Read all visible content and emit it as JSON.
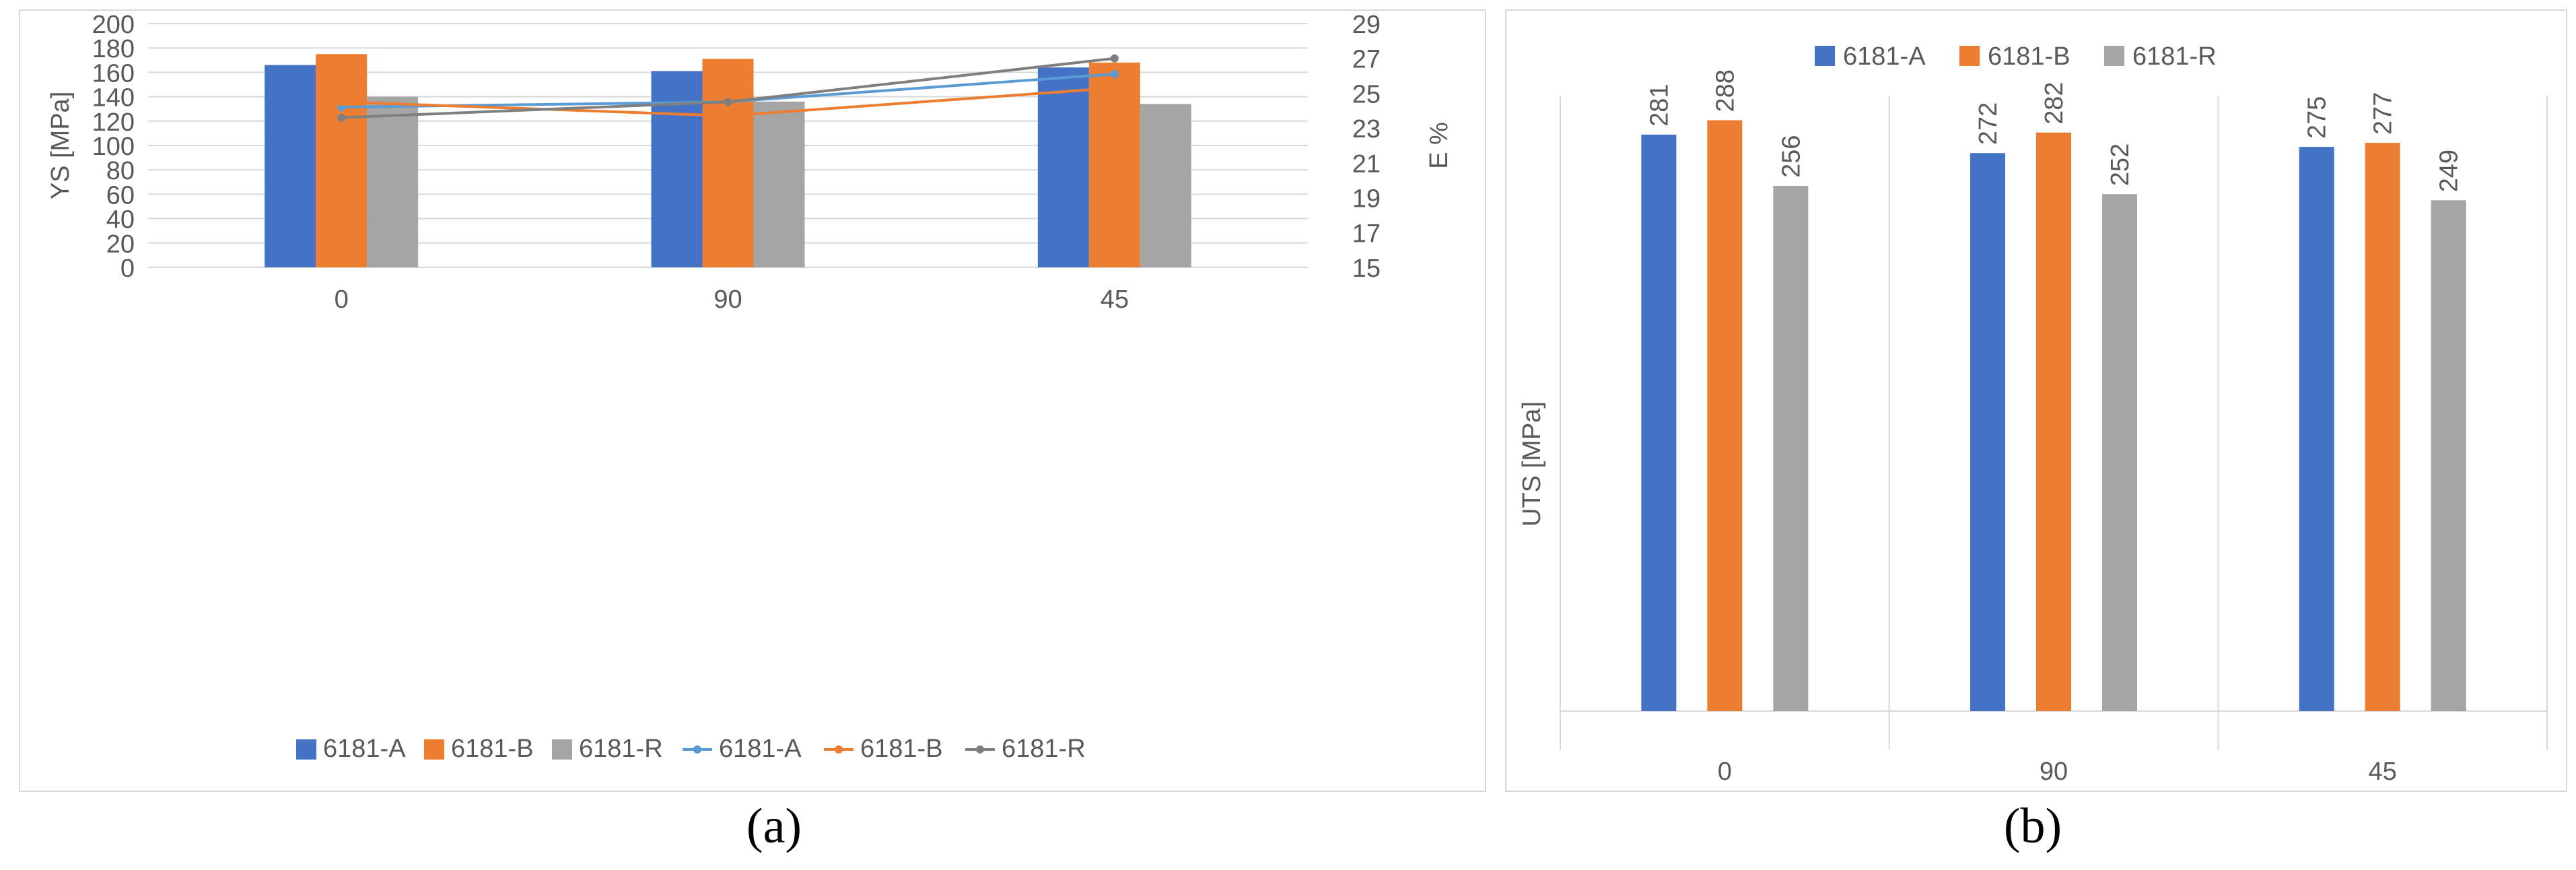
{
  "colors": {
    "series_a": "#4472C4",
    "series_b": "#ED7D31",
    "series_r": "#A5A5A5",
    "line_a": "#5B9BD5",
    "line_b": "#ED7D31",
    "line_r": "#7F7F7F",
    "grid": "#D9D9D9",
    "text": "#595959"
  },
  "chart_data": [
    {
      "id": "a",
      "type": "bar",
      "panel_label": "(a)",
      "categories": [
        "0",
        "90",
        "45"
      ],
      "ylabel": "YS [MPa]",
      "ylim": [
        0,
        200
      ],
      "yticks": [
        0,
        20,
        40,
        60,
        80,
        100,
        120,
        140,
        160,
        180,
        200
      ],
      "y2label": "E %",
      "y2lim": [
        15,
        29
      ],
      "y2ticks": [
        15,
        17,
        19,
        21,
        23,
        25,
        27,
        29
      ],
      "series": [
        {
          "name": "6181-A",
          "values": [
            166,
            161,
            164
          ],
          "color_key": "series_a"
        },
        {
          "name": "6181-B",
          "values": [
            175,
            171,
            168
          ],
          "color_key": "series_b"
        },
        {
          "name": "6181-R",
          "values": [
            140,
            136,
            134
          ],
          "color_key": "series_r"
        }
      ],
      "line_series": [
        {
          "name": "6181-A",
          "values": [
            24.2,
            24.5,
            26.1
          ],
          "color_key": "line_a"
        },
        {
          "name": "6181-B",
          "values": [
            24.5,
            23.7,
            25.3
          ],
          "color_key": "line_b"
        },
        {
          "name": "6181-R",
          "values": [
            23.6,
            24.5,
            27.0
          ],
          "color_key": "line_r"
        }
      ],
      "legend_position": "bottom",
      "grid": true
    },
    {
      "id": "b",
      "type": "bar",
      "panel_label": "(b)",
      "categories": [
        "0",
        "90",
        "45"
      ],
      "ylabel": "UTS [MPa]",
      "ylim": [
        0,
        300
      ],
      "series": [
        {
          "name": "6181-A",
          "values": [
            281,
            272,
            275
          ],
          "color_key": "series_a"
        },
        {
          "name": "6181-B",
          "values": [
            288,
            282,
            277
          ],
          "color_key": "series_b"
        },
        {
          "name": "6181-R",
          "values": [
            256,
            252,
            249
          ],
          "color_key": "series_r"
        }
      ],
      "data_labels": true,
      "legend_position": "top",
      "grid": false
    }
  ]
}
